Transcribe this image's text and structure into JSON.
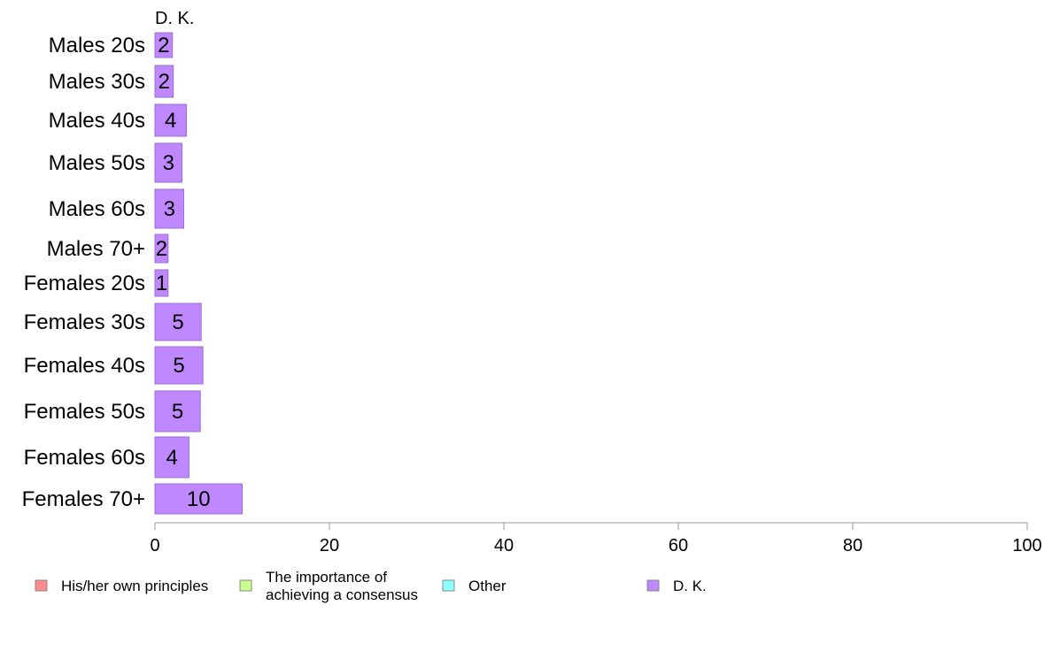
{
  "chart_data": {
    "type": "bar",
    "orientation": "horizontal",
    "series_header": "D. K.",
    "categories": [
      "Males 20s",
      "Males 30s",
      "Males 40s",
      "Males 50s",
      "Males 60s",
      "Males 70+",
      "Females 20s",
      "Females 30s",
      "Females 40s",
      "Females 50s",
      "Females 60s",
      "Females 70+"
    ],
    "series": [
      {
        "name": "D. K.",
        "color": "#bf88ff",
        "border": "#9a6fd0",
        "values": [
          2.0,
          2.1,
          3.6,
          3.1,
          3.3,
          1.5,
          1.5,
          5.3,
          5.5,
          5.2,
          3.9,
          10.0
        ],
        "labels": [
          "2",
          "2",
          "4",
          "3",
          "3",
          "2",
          "1",
          "5",
          "5",
          "5",
          "4",
          "10"
        ]
      }
    ],
    "xlim": [
      0,
      100
    ],
    "xticks": [
      0,
      20,
      40,
      60,
      80,
      100
    ],
    "xtick_labels": [
      "0",
      "20",
      "40",
      "60",
      "80",
      "100"
    ],
    "grid": false,
    "legend": {
      "placement": "bottom",
      "items": [
        {
          "label_lines": [
            "His/her own principles"
          ],
          "color": "#ff8c8c"
        },
        {
          "label_lines": [
            "The importance of",
            "achieving a consensus"
          ],
          "color": "#c8ff8c"
        },
        {
          "label_lines": [
            "Other"
          ],
          "color": "#8cffff"
        },
        {
          "label_lines": [
            "D. K."
          ],
          "color": "#bf88ff"
        }
      ]
    }
  }
}
